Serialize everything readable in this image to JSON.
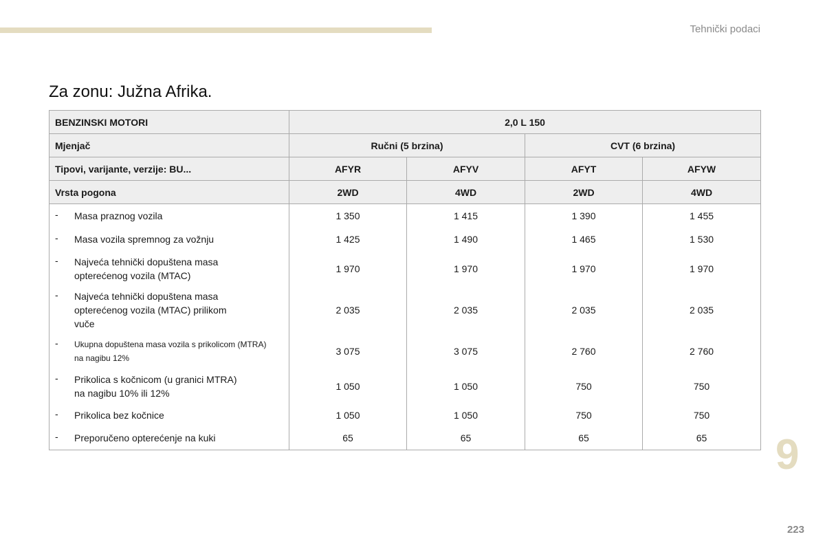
{
  "header": {
    "section": "Tehnički podaci"
  },
  "title": "Za zonu: Južna Afrika.",
  "table": {
    "engine_label": "BENZINSKI MOTORI",
    "engine_value": "2,0 L 150",
    "gearbox_label": "Mjenjač",
    "gearbox_manual": "Ručni (5 brzina)",
    "gearbox_cvt": "CVT (6 brzina)",
    "types_label": "Tipovi, varijante, verzije: BU...",
    "types": [
      "AFYR",
      "AFYV",
      "AFYT",
      "AFYW"
    ],
    "drive_label": "Vrsta pogona",
    "drives": [
      "2WD",
      "4WD",
      "2WD",
      "4WD"
    ],
    "rows": [
      {
        "dash": "-",
        "line1": "Masa praznog vozila",
        "line2": "",
        "line3": "",
        "values": [
          "1 350",
          "1 415",
          "1 390",
          "1 455"
        ]
      },
      {
        "dash": "-",
        "line1": "Masa vozila spremnog za vožnju",
        "line2": "",
        "line3": "",
        "values": [
          "1 425",
          "1 490",
          "1 465",
          "1 530"
        ]
      },
      {
        "dash": "-",
        "line1": "Najveća tehnički dopuštena masa",
        "line2": "opterećenog vozila (MTAC)",
        "line3": "",
        "values": [
          "1 970",
          "1 970",
          "1 970",
          "1 970"
        ]
      },
      {
        "dash": "-",
        "line1": "Najveća tehnički dopuštena masa",
        "line2": "opterećenog vozila (MTAC) prilikom",
        "line3": "vuče",
        "values": [
          "2 035",
          "2 035",
          "2 035",
          "2 035"
        ]
      },
      {
        "dash": "-",
        "line1": "Ukupna dopuštena masa vozila s prikolicom (MTRA)",
        "line2": "na nagibu 12%",
        "line3": "",
        "values": [
          "3 075",
          "3 075",
          "2 760",
          "2 760"
        ]
      },
      {
        "dash": "-",
        "line1": "Prikolica s kočnicom (u granici MTRA)",
        "line2": "na nagibu 10% ili 12%",
        "line3": "",
        "values": [
          "1 050",
          "1 050",
          "750",
          "750"
        ]
      },
      {
        "dash": "-",
        "line1": "Prikolica bez kočnice",
        "line2": "",
        "line3": "",
        "values": [
          "1 050",
          "1 050",
          "750",
          "750"
        ]
      },
      {
        "dash": "-",
        "line1": "Preporučeno opterećenje na kuki",
        "line2": "",
        "line3": "",
        "values": [
          "65",
          "65",
          "65",
          "65"
        ]
      }
    ]
  },
  "chapter": "9",
  "page_number": "223",
  "colors": {
    "accent": "#e4dcc0",
    "header_bg": "#eeeeee",
    "muted_text": "#8a8a8a",
    "border": "#aaaaaa"
  }
}
